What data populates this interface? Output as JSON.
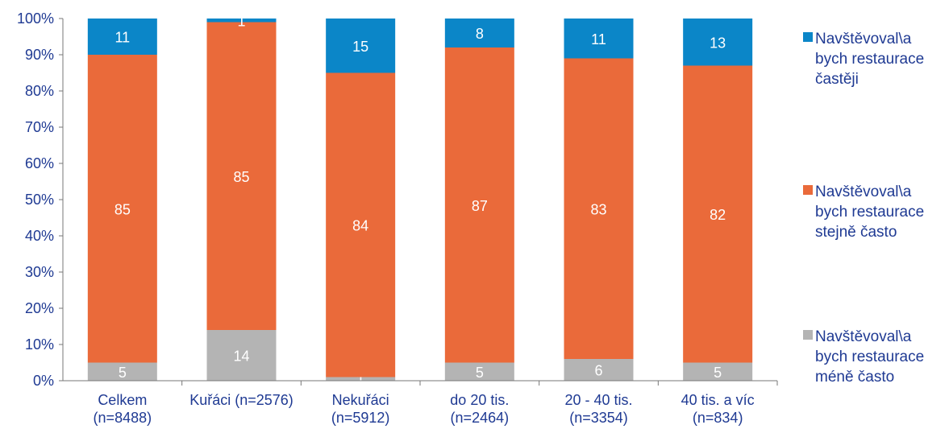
{
  "chart_data": {
    "type": "bar",
    "stacked": true,
    "categories": [
      [
        "Celkem",
        "(n=8488)"
      ],
      [
        "Kuřáci (n=2576)"
      ],
      [
        "Nekuřáci",
        "(n=5912)"
      ],
      [
        "do 20 tis.",
        "(n=2464)"
      ],
      [
        "20 - 40 tis.",
        "(n=3354)"
      ],
      [
        "40 tis. a víc",
        "(n=834)"
      ]
    ],
    "series": [
      {
        "name": "Navštěvoval\\a bych restaurace méně často",
        "legend_lines": [
          "Navštěvoval\\a",
          "bych restaurace",
          "méně často"
        ],
        "color": "#b4b4b4",
        "values": [
          5,
          14,
          1,
          5,
          6,
          5
        ]
      },
      {
        "name": "Navštěvoval\\a bych restaurace stejně často",
        "legend_lines": [
          "Navštěvoval\\a",
          "bych restaurace",
          "stejně často"
        ],
        "color": "#ea6a3a",
        "values": [
          85,
          85,
          84,
          87,
          83,
          82
        ]
      },
      {
        "name": "Navštěvoval\\a bych restaurace častěji",
        "legend_lines": [
          "Navštěvoval\\a",
          "bych restaurace",
          "častěji"
        ],
        "color": "#0b86c8",
        "values": [
          11,
          1,
          15,
          8,
          11,
          13
        ]
      }
    ],
    "y_ticks": [
      "0%",
      "10%",
      "20%",
      "30%",
      "40%",
      "50%",
      "60%",
      "70%",
      "80%",
      "90%",
      "100%"
    ],
    "ylim": [
      0,
      100
    ],
    "legend_position": "right",
    "grid": false,
    "title": "",
    "xlabel": "",
    "ylabel": ""
  }
}
